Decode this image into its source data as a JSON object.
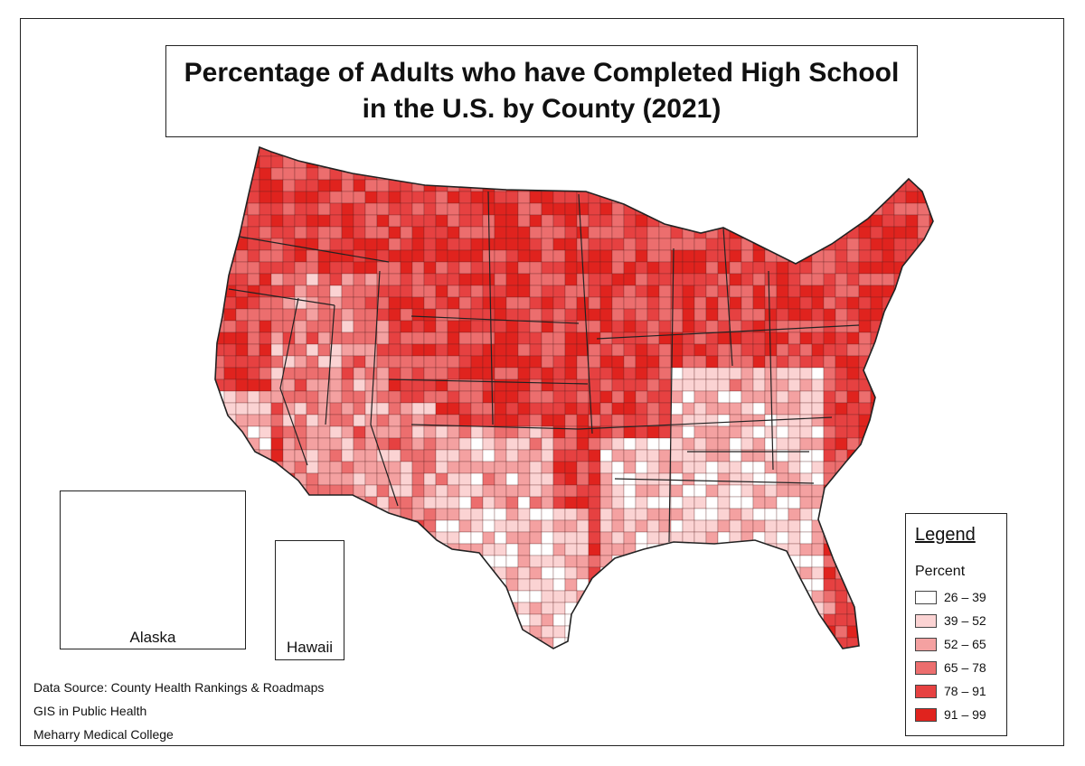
{
  "title": {
    "line1": "Percentage of Adults who have Completed High School",
    "line2": "in the U.S. by County (2021)"
  },
  "legend": {
    "heading": "Legend",
    "subheading": "Percent",
    "classes": [
      {
        "label": "26 – 39",
        "color": "#ffffff"
      },
      {
        "label": "39 – 52",
        "color": "#fbd3d3"
      },
      {
        "label": "52 – 65",
        "color": "#f4a1a1"
      },
      {
        "label": "65 – 78",
        "color": "#ec6e6e"
      },
      {
        "label": "78 – 91",
        "color": "#e64141"
      },
      {
        "label": "91 – 99",
        "color": "#e0231e"
      }
    ]
  },
  "insets": {
    "alaska": "Alaska",
    "hawaii": "Hawaii"
  },
  "credits": {
    "source": "Data Source: County Health Rankings & Roadmaps",
    "course": "GIS in Public Health",
    "institution": "Meharry Medical College"
  }
}
